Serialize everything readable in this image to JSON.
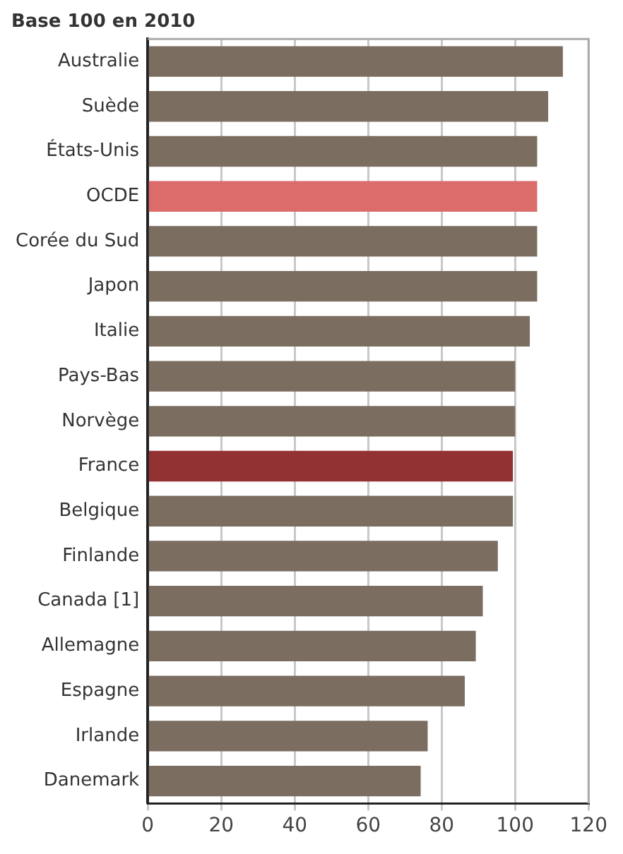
{
  "chart_data": {
    "type": "bar",
    "orientation": "horizontal",
    "title": "Base 100 en 2010",
    "categories": [
      "Australie",
      "Suède",
      "États-Unis",
      "OCDE",
      "Corée du Sud",
      "Japon",
      "Italie",
      "Pays-Bas",
      "Norvège",
      "France",
      "Belgique",
      "Finlande",
      "Canada [1]",
      "Allemagne",
      "Espagne",
      "Irlande",
      "Danemark"
    ],
    "values": [
      113,
      109,
      106,
      106,
      106,
      106,
      104,
      100,
      100,
      99.4,
      99.4,
      95.3,
      91.2,
      89.3,
      86.3,
      76.2,
      74.3
    ],
    "colors": [
      "#7b6d5f",
      "#7b6d5f",
      "#7b6d5f",
      "#dc6b6b",
      "#7b6d5f",
      "#7b6d5f",
      "#7b6d5f",
      "#7b6d5f",
      "#7b6d5f",
      "#933232",
      "#7b6d5f",
      "#7b6d5f",
      "#7b6d5f",
      "#7b6d5f",
      "#7b6d5f",
      "#7b6d5f",
      "#7b6d5f"
    ],
    "xlim": [
      0,
      120
    ],
    "xticks": [
      0,
      20,
      40,
      60,
      80,
      100,
      120
    ],
    "grid": "x",
    "legend": false
  }
}
